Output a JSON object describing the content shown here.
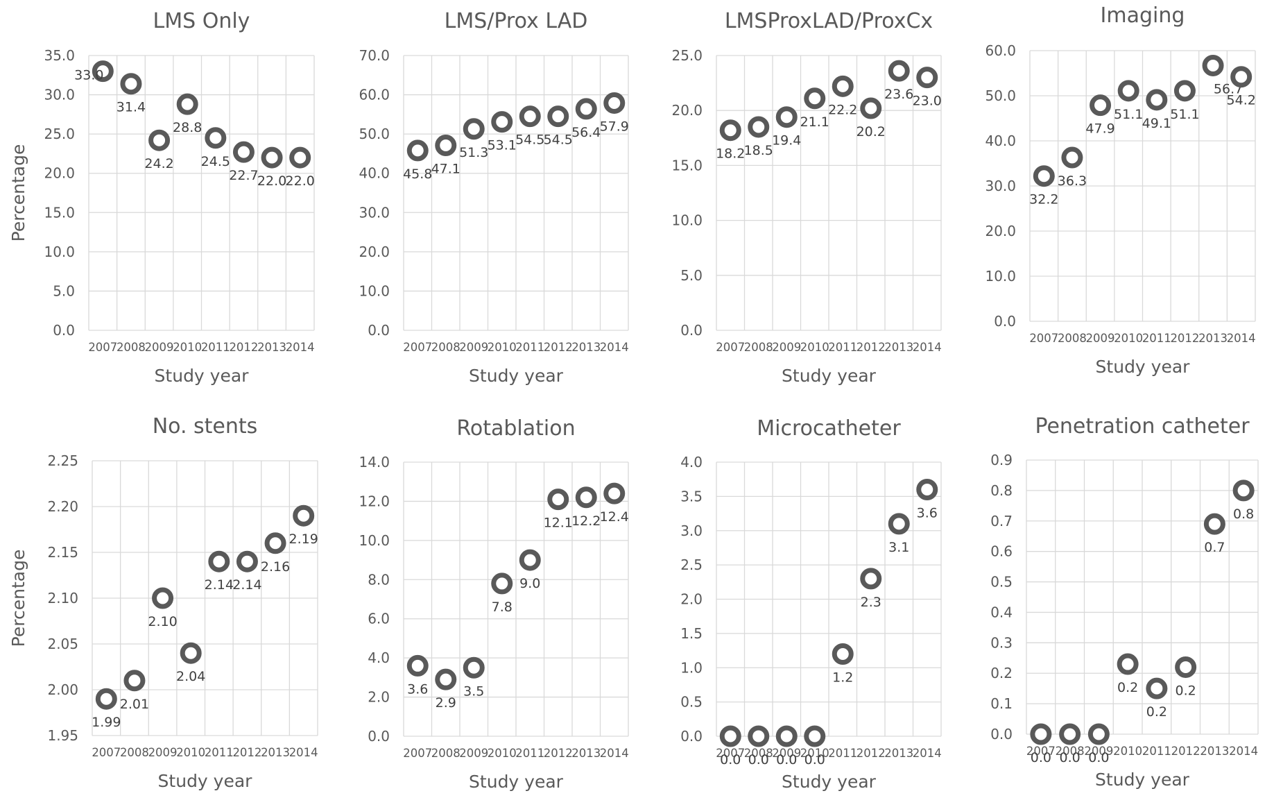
{
  "shared": {
    "xlabel": "Study year",
    "ylabel": "Percentage",
    "marker_color": "#595959",
    "grid_color": "#d9d9d9",
    "text_color": "#595959"
  },
  "chart_data": [
    {
      "type": "scatter",
      "title": "LMS Only",
      "xlabel": "Study year",
      "ylabel": "Percentage",
      "x": [
        "2007",
        "2008",
        "2009",
        "2010",
        "2011",
        "2012",
        "2013",
        "2014"
      ],
      "y": [
        33.0,
        31.4,
        24.2,
        28.8,
        24.5,
        22.7,
        22.0,
        22.0
      ],
      "labels": [
        "33.0",
        "31.4",
        "24.2",
        "28.8",
        "24.5",
        "22.7",
        "22.0",
        "22.0"
      ],
      "yticks": [
        "0.0",
        "5.0",
        "10.0",
        "15.0",
        "20.0",
        "25.0",
        "30.0",
        "35.0"
      ],
      "ylim": [
        0,
        35
      ],
      "grid": true
    },
    {
      "type": "scatter",
      "title": "LMS/Prox LAD",
      "xlabel": "Study year",
      "ylabel": "",
      "x": [
        "2007",
        "2008",
        "2009",
        "2010",
        "2011",
        "2012",
        "2013",
        "2014"
      ],
      "y": [
        45.8,
        47.1,
        51.3,
        53.1,
        54.5,
        54.5,
        56.4,
        57.9
      ],
      "labels": [
        "45.8",
        "47.1",
        "51.3",
        "53.1",
        "54.5",
        "54.5",
        "56.4",
        "57.9"
      ],
      "yticks": [
        "0.0",
        "10.0",
        "20.0",
        "30.0",
        "40.0",
        "50.0",
        "60.0",
        "70.0"
      ],
      "ylim": [
        0,
        70
      ],
      "grid": true
    },
    {
      "type": "scatter",
      "title": "LMSProxLAD/ProxCx",
      "xlabel": "Study year",
      "ylabel": "",
      "x": [
        "2007",
        "2008",
        "2009",
        "2010",
        "2011",
        "2012",
        "2013",
        "2014"
      ],
      "y": [
        18.2,
        18.5,
        19.4,
        21.1,
        22.2,
        20.2,
        23.6,
        23.0
      ],
      "labels": [
        "18.2",
        "18.5",
        "19.4",
        "21.1",
        "22.2",
        "20.2",
        "23.6",
        "23.0"
      ],
      "yticks": [
        "0.0",
        "5.0",
        "10.0",
        "15.0",
        "20.0",
        "25.0"
      ],
      "ylim": [
        0,
        25
      ],
      "grid": true
    },
    {
      "type": "scatter",
      "title": "Imaging",
      "xlabel": "Study year",
      "ylabel": "",
      "x": [
        "2007",
        "2008",
        "2009",
        "2010",
        "2011",
        "2012",
        "2013",
        "2014"
      ],
      "y": [
        32.2,
        36.3,
        47.9,
        51.1,
        49.1,
        51.1,
        56.7,
        54.2
      ],
      "labels": [
        "32.2",
        "36.3",
        "47.9",
        "51.1",
        "49.1",
        "51.1",
        "56.7",
        "54.2"
      ],
      "yticks": [
        "0.0",
        "10.0",
        "20.0",
        "30.0",
        "40.0",
        "50.0",
        "60.0"
      ],
      "ylim": [
        0,
        60
      ],
      "grid": true
    },
    {
      "type": "scatter",
      "title": "No. stents",
      "xlabel": "Study year",
      "ylabel": "Percentage",
      "x": [
        "2007",
        "2008",
        "2009",
        "2010",
        "2011",
        "2012",
        "2013",
        "2014"
      ],
      "y": [
        1.99,
        2.01,
        2.1,
        2.04,
        2.14,
        2.14,
        2.16,
        2.19
      ],
      "labels": [
        "1.99",
        "2.01",
        "2.10",
        "2.04",
        "2.14",
        "2.14",
        "2.16",
        "2.19"
      ],
      "yticks": [
        "1.95",
        "2.00",
        "2.05",
        "2.10",
        "2.15",
        "2.20",
        "2.25"
      ],
      "ylim": [
        1.95,
        2.25
      ],
      "grid": true
    },
    {
      "type": "scatter",
      "title": "Rotablation",
      "xlabel": "Study year",
      "ylabel": "",
      "x": [
        "2007",
        "2008",
        "2009",
        "2010",
        "2011",
        "2012",
        "2013",
        "2014"
      ],
      "y": [
        3.6,
        2.9,
        3.5,
        7.8,
        9.0,
        12.1,
        12.2,
        12.4
      ],
      "labels": [
        "3.6",
        "2.9",
        "3.5",
        "7.8",
        "9.0",
        "12.1",
        "12.2",
        "12.4"
      ],
      "yticks": [
        "0.0",
        "2.0",
        "4.0",
        "6.0",
        "8.0",
        "10.0",
        "12.0",
        "14.0"
      ],
      "ylim": [
        0,
        14
      ],
      "grid": true
    },
    {
      "type": "scatter",
      "title": "Microcatheter",
      "xlabel": "Study year",
      "ylabel": "",
      "x": [
        "2007",
        "2008",
        "2009",
        "2010",
        "2011",
        "2012",
        "2013",
        "2014"
      ],
      "y": [
        0.0,
        0.0,
        0.0,
        0.0,
        1.2,
        2.3,
        3.1,
        3.6
      ],
      "labels": [
        "0.0",
        "0.0",
        "0.0",
        "0.0",
        "1.2",
        "2.3",
        "3.1",
        "3.6"
      ],
      "yticks": [
        "0.0",
        "0.5",
        "1.0",
        "1.5",
        "2.0",
        "2.5",
        "3.0",
        "3.5",
        "4.0"
      ],
      "ylim": [
        0,
        4
      ],
      "grid": true
    },
    {
      "type": "scatter",
      "title": "Penetration catheter",
      "xlabel": "Study year",
      "ylabel": "",
      "x": [
        "2007",
        "2008",
        "2009",
        "2010",
        "2011",
        "2012",
        "2013",
        "2014"
      ],
      "y": [
        0.0,
        0.0,
        0.0,
        0.23,
        0.15,
        0.22,
        0.69,
        0.8
      ],
      "labels": [
        "0.0",
        "0.0",
        "0.0",
        "0.2",
        "0.2",
        "0.2",
        "0.7",
        "0.8"
      ],
      "yticks": [
        "0.0",
        "0.1",
        "0.2",
        "0.3",
        "0.4",
        "0.5",
        "0.6",
        "0.7",
        "0.8",
        "0.9"
      ],
      "ylim": [
        0,
        0.9
      ],
      "grid": true
    }
  ]
}
